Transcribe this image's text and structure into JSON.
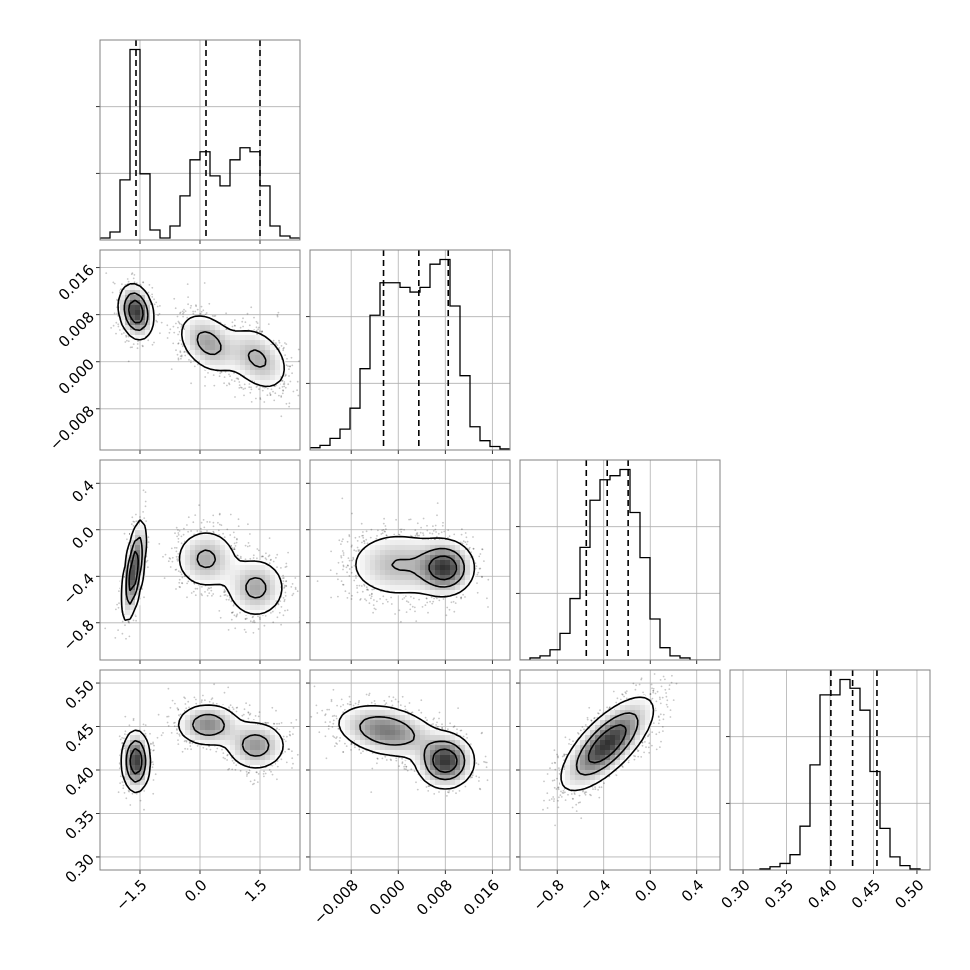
{
  "chart_data": {
    "type": "corner",
    "parameters": [
      {
        "ticks": [
          -1.5,
          0.0,
          1.5
        ],
        "tick_labels": [
          "−1.5",
          "0.0",
          "1.5"
        ],
        "range": [
          -2.5,
          2.5
        ],
        "quantiles": [
          -1.6,
          0.15,
          1.5
        ],
        "hist_bins": [
          -2.5,
          -2.25,
          -2.0,
          -1.75,
          -1.5,
          -1.25,
          -1.0,
          -0.75,
          -0.5,
          -0.25,
          0.0,
          0.25,
          0.5,
          0.75,
          1.0,
          1.25,
          1.5,
          1.75,
          2.0,
          2.25,
          2.5
        ],
        "hist_counts": [
          0.01,
          0.04,
          0.3,
          0.95,
          0.33,
          0.05,
          0.01,
          0.07,
          0.22,
          0.4,
          0.44,
          0.32,
          0.27,
          0.4,
          0.46,
          0.44,
          0.27,
          0.07,
          0.02,
          0.01
        ]
      },
      {
        "ticks": [
          -0.008,
          0.0,
          0.008,
          0.016
        ],
        "tick_labels": [
          "−0.008",
          "0.000",
          "0.008",
          "0.016"
        ],
        "range": [
          -0.015,
          0.019
        ],
        "quantiles": [
          -0.0025,
          0.0035,
          0.0085
        ],
        "hist_bins": [
          -0.015,
          -0.0133,
          -0.0116,
          -0.0099,
          -0.0082,
          -0.0065,
          -0.0048,
          -0.0031,
          -0.0014,
          0.0003,
          0.002,
          0.0037,
          0.0054,
          0.0071,
          0.0088,
          0.0105,
          0.0122,
          0.0139,
          0.0156,
          0.0173,
          0.019
        ],
        "hist_counts": [
          0.01,
          0.02,
          0.05,
          0.09,
          0.18,
          0.35,
          0.58,
          0.72,
          0.72,
          0.7,
          0.68,
          0.7,
          0.8,
          0.82,
          0.62,
          0.32,
          0.1,
          0.04,
          0.015,
          0.005
        ]
      },
      {
        "ticks": [
          -0.8,
          -0.4,
          0.0,
          0.4
        ],
        "tick_labels": [
          "−0.8",
          "−0.4",
          "0.0",
          "0.4"
        ],
        "range": [
          -1.12,
          0.6
        ],
        "quantiles": [
          -0.55,
          -0.37,
          -0.19
        ],
        "hist_bins": [
          -1.12,
          -1.034,
          -0.948,
          -0.862,
          -0.776,
          -0.69,
          -0.604,
          -0.518,
          -0.432,
          -0.346,
          -0.26,
          -0.174,
          -0.088,
          -0.002,
          0.084,
          0.17,
          0.256,
          0.342,
          0.428,
          0.514,
          0.6
        ],
        "hist_counts": [
          0.0,
          0.01,
          0.02,
          0.05,
          0.13,
          0.3,
          0.55,
          0.78,
          0.88,
          0.9,
          0.93,
          0.72,
          0.5,
          0.2,
          0.06,
          0.02,
          0.01,
          0.0,
          0.0,
          0.0
        ]
      },
      {
        "ticks": [
          0.3,
          0.35,
          0.4,
          0.45,
          0.5
        ],
        "tick_labels": [
          "0.30",
          "0.35",
          "0.40",
          "0.45",
          "0.50"
        ],
        "range": [
          0.285,
          0.515
        ],
        "quantiles": [
          0.401,
          0.426,
          0.454
        ],
        "hist_bins": [
          0.285,
          0.2965,
          0.308,
          0.3195,
          0.331,
          0.3425,
          0.354,
          0.3655,
          0.377,
          0.3885,
          0.4,
          0.4115,
          0.423,
          0.4345,
          0.446,
          0.4575,
          0.469,
          0.4805,
          0.492,
          0.5035,
          0.515
        ],
        "hist_counts": [
          0.0,
          0.0,
          0.0,
          0.005,
          0.015,
          0.03,
          0.07,
          0.2,
          0.48,
          0.8,
          0.8,
          0.87,
          0.83,
          0.73,
          0.45,
          0.19,
          0.06,
          0.02,
          0.005,
          0.0
        ]
      }
    ],
    "pairs": [
      {
        "col": 0,
        "row": 1,
        "modes": [
          {
            "cx": -1.6,
            "cy": 0.0085,
            "sx": 0.22,
            "sy": 0.0024,
            "rho": -0.2,
            "w": 0.32
          },
          {
            "cx": 0.2,
            "cy": 0.0032,
            "sx": 0.4,
            "sy": 0.0028,
            "rho": -0.35,
            "w": 0.34
          },
          {
            "cx": 1.45,
            "cy": 0.0005,
            "sx": 0.42,
            "sy": 0.003,
            "rho": -0.35,
            "w": 0.34
          }
        ]
      },
      {
        "col": 0,
        "row": 2,
        "modes": [
          {
            "cx": -1.65,
            "cy": -0.35,
            "sx": 0.15,
            "sy": 0.22,
            "rho": 0.6,
            "w": 0.32
          },
          {
            "cx": 0.15,
            "cy": -0.25,
            "sx": 0.42,
            "sy": 0.14,
            "rho": 0.0,
            "w": 0.34
          },
          {
            "cx": 1.4,
            "cy": -0.5,
            "sx": 0.4,
            "sy": 0.14,
            "rho": 0.0,
            "w": 0.34
          }
        ]
      },
      {
        "col": 0,
        "row": 3,
        "modes": [
          {
            "cx": -1.6,
            "cy": 0.41,
            "sx": 0.18,
            "sy": 0.018,
            "rho": 0.0,
            "w": 0.32
          },
          {
            "cx": 0.2,
            "cy": 0.452,
            "sx": 0.42,
            "sy": 0.013,
            "rho": 0.0,
            "w": 0.34
          },
          {
            "cx": 1.4,
            "cy": 0.428,
            "sx": 0.4,
            "sy": 0.015,
            "rho": 0.0,
            "w": 0.34
          }
        ]
      },
      {
        "col": 1,
        "row": 2,
        "modes": [
          {
            "cx": 0.0,
            "cy": -0.3,
            "sx": 0.0048,
            "sy": 0.16,
            "rho": 0.0,
            "w": 0.55
          },
          {
            "cx": 0.008,
            "cy": -0.33,
            "sx": 0.0025,
            "sy": 0.12,
            "rho": 0.0,
            "w": 0.45
          }
        ]
      },
      {
        "col": 1,
        "row": 3,
        "modes": [
          {
            "cx": -0.002,
            "cy": 0.445,
            "sx": 0.0045,
            "sy": 0.016,
            "rho": -0.3,
            "w": 0.55
          },
          {
            "cx": 0.008,
            "cy": 0.41,
            "sx": 0.0025,
            "sy": 0.016,
            "rho": 0.0,
            "w": 0.45
          }
        ]
      },
      {
        "col": 2,
        "row": 3,
        "modes": [
          {
            "cx": -0.37,
            "cy": 0.43,
            "sx": 0.2,
            "sy": 0.027,
            "rho": 0.72,
            "w": 1.0
          }
        ]
      }
    ]
  }
}
